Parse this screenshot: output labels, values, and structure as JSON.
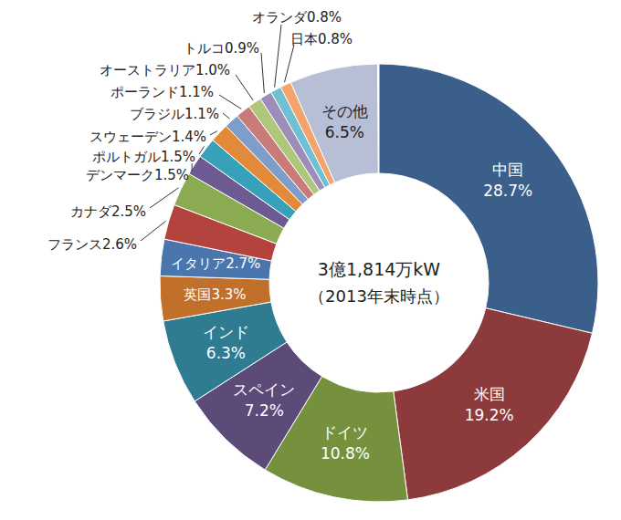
{
  "chart_data": {
    "type": "donut",
    "title": "3億1,814万kW",
    "subtitle": "（2013年末時点）",
    "categories": [
      "中国",
      "米国",
      "ドイツ",
      "スペイン",
      "インド",
      "英国",
      "イタリア",
      "フランス",
      "カナダ",
      "デンマーク",
      "ポルトガル",
      "スウェーデン",
      "ブラジル",
      "ポーランド",
      "オーストラリア",
      "トルコ",
      "オランダ",
      "日本",
      "その他"
    ],
    "values": [
      28.7,
      19.2,
      10.8,
      7.2,
      6.3,
      3.3,
      2.7,
      2.6,
      2.5,
      1.5,
      1.5,
      1.4,
      1.1,
      1.1,
      1.0,
      0.9,
      0.8,
      0.8,
      6.5
    ],
    "value_labels": [
      "28.7%",
      "19.2%",
      "10.8%",
      "7.2%",
      "6.3%",
      "3.3%",
      "2.7%",
      "2.6%",
      "2.5%",
      "1.5%",
      "1.5%",
      "1.4%",
      "1.1%",
      "1.1%",
      "1.0%",
      "0.9%",
      "0.8%",
      "0.8%",
      "6.5%"
    ],
    "colors": [
      "#3a5f8b",
      "#8c3a3b",
      "#76913d",
      "#5c4a78",
      "#2f7b92",
      "#c1702b",
      "#4b76ad",
      "#b5433d",
      "#8aab51",
      "#6e5a92",
      "#36a1b9",
      "#e2893a",
      "#7f9dc9",
      "#c97b79",
      "#afc77b",
      "#9d8db8",
      "#70c0d3",
      "#f3a46c",
      "#b6bfd6"
    ],
    "data_labels": true
  }
}
